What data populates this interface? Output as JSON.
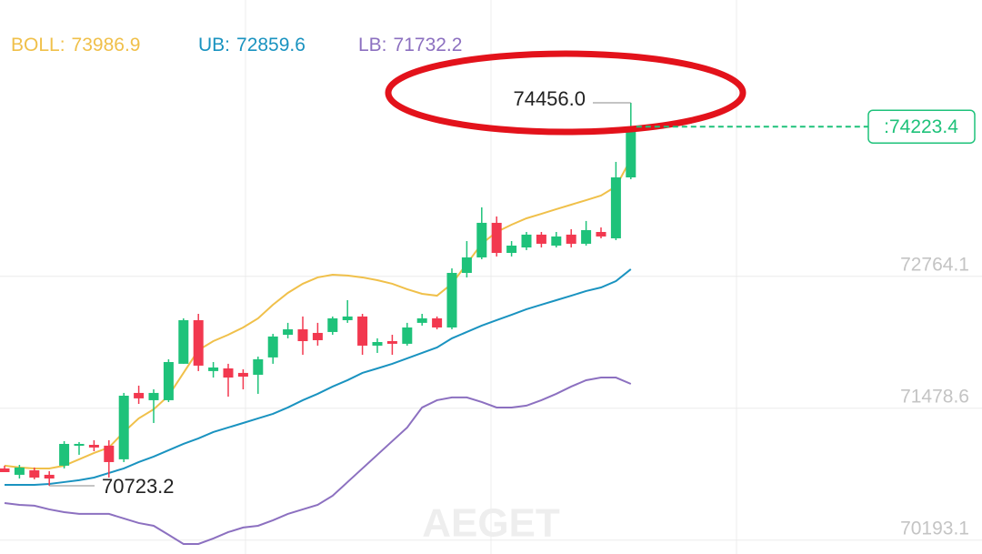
{
  "chart_data": {
    "type": "candlestick",
    "open": [
      70892,
      70830,
      70874,
      70830,
      70919,
      71114,
      71122,
      71114,
      70981,
      71628,
      71557,
      71557,
      71912,
      72337,
      71841,
      71867,
      71823,
      71805,
      71974,
      72195,
      72248,
      72213,
      72222,
      72337,
      72373,
      72089,
      72133,
      72107,
      72311,
      72355,
      72266,
      72798,
      72949,
      73286,
      72993,
      73046,
      73171,
      73064,
      73171,
      73082,
      73197,
      73135,
      73729
    ],
    "high": [
      70919,
      70927,
      70901,
      70865,
      71158,
      71149,
      71167,
      71167,
      71628,
      71699,
      71663,
      71956,
      72355,
      72399,
      71929,
      71912,
      71858,
      71982,
      72204,
      72311,
      72373,
      72311,
      72373,
      72532,
      72399,
      72160,
      72195,
      72311,
      72399,
      72373,
      72842,
      73108,
      73437,
      73348,
      73108,
      73197,
      73197,
      73197,
      73224,
      73304,
      73241,
      73880,
      74456.0
    ],
    "low": [
      70856,
      70794,
      70786,
      70723.2,
      70892,
      71025,
      71060,
      70803,
      70954,
      71521,
      71335,
      71539,
      71912,
      71841,
      71778,
      71592,
      71663,
      71619,
      71912,
      72160,
      72000,
      72089,
      72195,
      72311,
      72000,
      72018,
      72000,
      72089,
      72284,
      72248,
      72248,
      72754,
      72931,
      72958,
      72958,
      73020,
      73046,
      73046,
      73046,
      73064,
      73135,
      73117,
      73711
    ],
    "close": [
      70856,
      70901,
      70803,
      70794,
      71131,
      71131,
      71096,
      70954,
      71601,
      71575,
      71628,
      71929,
      72337,
      71894,
      71876,
      71778,
      71787,
      71956,
      72178,
      72248,
      72133,
      72142,
      72355,
      72373,
      72089,
      72124,
      72107,
      72266,
      72355,
      72266,
      72798,
      72949,
      73286,
      72993,
      73064,
      73171,
      73082,
      73153,
      73082,
      73215,
      73153,
      73729,
      74223.4
    ],
    "up_color": "#1ec27a",
    "down_color": "#f2384f",
    "series": [
      {
        "name": "BOLL:",
        "color": "#f0c04a",
        "current": 73986.9,
        "values": [
          70919,
          70901,
          70892,
          70892,
          70919,
          70981,
          71043,
          71096,
          71247,
          71380,
          71468,
          71601,
          71823,
          72045,
          72133,
          72195,
          72266,
          72355,
          72488,
          72603,
          72692,
          72754,
          72780,
          72772,
          72754,
          72727,
          72692,
          72639,
          72594,
          72576,
          72692,
          72887,
          73082,
          73197,
          73268,
          73330,
          73374,
          73419,
          73463,
          73507,
          73552,
          73640,
          73906
        ]
      },
      {
        "name": "UB:",
        "color": "#1a93c0",
        "current": 72859.6,
        "values": [
          70732,
          70732,
          70732,
          70741,
          70759,
          70777,
          70803,
          70848,
          70892,
          70954,
          71007,
          71069,
          71131,
          71185,
          71247,
          71291,
          71335,
          71380,
          71424,
          71486,
          71557,
          71619,
          71690,
          71752,
          71823,
          71867,
          71912,
          71965,
          72018,
          72071,
          72160,
          72222,
          72284,
          72337,
          72390,
          72444,
          72488,
          72532,
          72576,
          72621,
          72656,
          72718,
          72834
        ]
      },
      {
        "name": "LB:",
        "color": "#8c70c0",
        "current": 71732.2,
        "values": [
          70555,
          70537,
          70529,
          70493,
          70466,
          70449,
          70449,
          70449,
          70404,
          70360,
          70333,
          70245,
          70156,
          70156,
          70209,
          70271,
          70316,
          70333,
          70387,
          70449,
          70493,
          70537,
          70626,
          70759,
          70892,
          71025,
          71158,
          71291,
          71486,
          71557,
          71584,
          71584,
          71539,
          71486,
          71486,
          71504,
          71557,
          71619,
          71690,
          71752,
          71778,
          71778,
          71716
        ]
      }
    ],
    "ylim": [
      70058,
      75458
    ],
    "yticks": [
      72764.1,
      71478.6,
      70193.1
    ],
    "max_label": {
      "value": 74456,
      "label": "74456.0"
    },
    "min_label": {
      "value": 70723.2,
      "label": "70723.2"
    },
    "last_price": {
      "value": 74223.4,
      "label": ":74223.4"
    },
    "watermark": "AEGET"
  }
}
